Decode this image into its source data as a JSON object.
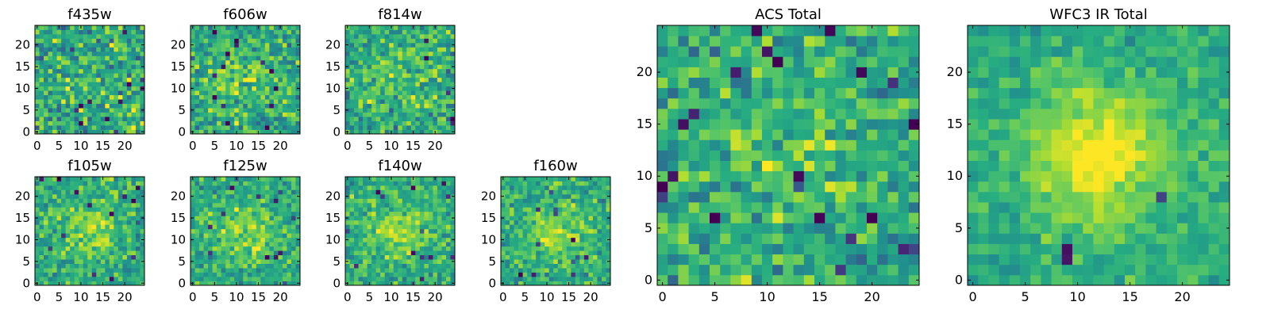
{
  "chart_data": {
    "type": "heatmap",
    "colormap": "viridis",
    "pixel_grid": [
      25,
      25
    ],
    "panels": [
      {
        "title": "f435w",
        "xticks": [
          "0",
          "5",
          "10",
          "15",
          "20"
        ],
        "yticks": [
          "0",
          "5",
          "10",
          "15",
          "20"
        ],
        "central_peak": 0.05,
        "noise": 1.0
      },
      {
        "title": "f606w",
        "xticks": [
          "0",
          "5",
          "10",
          "15",
          "20"
        ],
        "yticks": [
          "0",
          "5",
          "10",
          "15",
          "20"
        ],
        "central_peak": 0.35,
        "noise": 0.9
      },
      {
        "title": "f814w",
        "xticks": [
          "0",
          "5",
          "10",
          "15",
          "20"
        ],
        "yticks": [
          "0",
          "5",
          "10",
          "15",
          "20"
        ],
        "central_peak": 0.3,
        "noise": 0.9
      },
      {
        "title": "f105w",
        "xticks": [
          "0",
          "5",
          "10",
          "15",
          "20"
        ],
        "yticks": [
          "0",
          "5",
          "10",
          "15",
          "20"
        ],
        "central_peak": 0.5,
        "noise": 0.75
      },
      {
        "title": "f125w",
        "xticks": [
          "0",
          "5",
          "10",
          "15",
          "20"
        ],
        "yticks": [
          "0",
          "5",
          "10",
          "15",
          "20"
        ],
        "central_peak": 0.55,
        "noise": 0.7
      },
      {
        "title": "f140w",
        "xticks": [
          "0",
          "5",
          "10",
          "15",
          "20"
        ],
        "yticks": [
          "0",
          "5",
          "10",
          "15",
          "20"
        ],
        "central_peak": 0.55,
        "noise": 0.7
      },
      {
        "title": "f160w",
        "xticks": [
          "0",
          "5",
          "10",
          "15",
          "20"
        ],
        "yticks": [
          "0",
          "5",
          "10",
          "15",
          "20"
        ],
        "central_peak": 0.55,
        "noise": 0.7
      },
      {
        "title": "ACS Total",
        "xticks": [
          "0",
          "5",
          "10",
          "15",
          "20"
        ],
        "yticks": [
          "0",
          "5",
          "10",
          "15",
          "20"
        ],
        "central_peak": 0.25,
        "noise": 0.8
      },
      {
        "title": "WFC3 IR Total",
        "xticks": [
          "0",
          "5",
          "10",
          "15",
          "20"
        ],
        "yticks": [
          "0",
          "5",
          "10",
          "15",
          "20"
        ],
        "central_peak": 0.9,
        "noise": 0.45
      }
    ]
  }
}
